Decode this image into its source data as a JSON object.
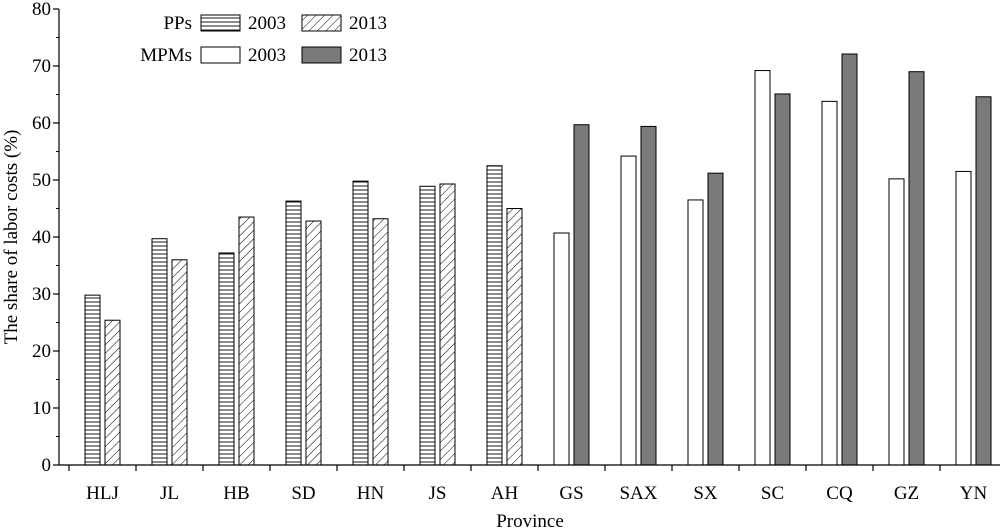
{
  "chart_data": {
    "type": "bar",
    "xlabel": "Province",
    "ylabel": "The share of labor costs (%)",
    "ylim": [
      0,
      80
    ],
    "yticks": [
      0,
      10,
      20,
      30,
      40,
      50,
      60,
      70,
      80
    ],
    "grid": false,
    "legend_position": "top-left",
    "categories": [
      "HLJ",
      "JL",
      "HB",
      "SD",
      "HN",
      "JS",
      "AH",
      "GS",
      "SAX",
      "SX",
      "SC",
      "CQ",
      "GZ",
      "YN"
    ],
    "legend": {
      "groups": [
        {
          "label": "PPs",
          "entries": [
            {
              "label": "2003",
              "style": "hlines"
            },
            {
              "label": "2013",
              "style": "diag"
            }
          ]
        },
        {
          "label": "MPMs",
          "entries": [
            {
              "label": "2003",
              "style": "white"
            },
            {
              "label": "2013",
              "style": "gray"
            }
          ]
        }
      ]
    },
    "series": [
      {
        "group": "PPs",
        "year": "2003",
        "style": "hlines",
        "values": [
          29.8,
          39.7,
          37.2,
          46.3,
          49.8,
          48.9,
          52.5,
          null,
          null,
          null,
          null,
          null,
          null,
          null
        ]
      },
      {
        "group": "PPs",
        "year": "2013",
        "style": "diag",
        "values": [
          25.4,
          36.0,
          43.5,
          42.8,
          43.2,
          49.3,
          45.0,
          null,
          null,
          null,
          null,
          null,
          null,
          null
        ]
      },
      {
        "group": "MPMs",
        "year": "2003",
        "style": "white",
        "values": [
          null,
          null,
          null,
          null,
          null,
          null,
          null,
          40.7,
          54.2,
          46.5,
          69.2,
          63.8,
          50.2,
          51.5
        ]
      },
      {
        "group": "MPMs",
        "year": "2013",
        "style": "gray",
        "values": [
          null,
          null,
          null,
          null,
          null,
          null,
          null,
          59.7,
          59.4,
          51.2,
          65.1,
          72.1,
          69.0,
          64.6
        ]
      }
    ],
    "colors": {
      "axis": "#000000",
      "gray_fill": "#7a7a7a",
      "white_fill": "#ffffff",
      "pattern_line": "#000000"
    }
  }
}
